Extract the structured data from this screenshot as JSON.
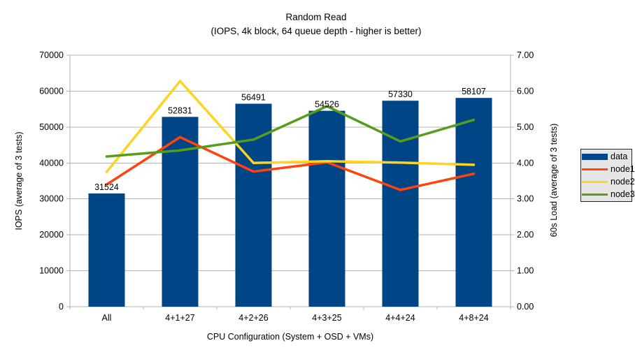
{
  "title": {
    "line1": "Random Read",
    "line2": "(IOPS, 4k block, 64 queue depth - higher is better)"
  },
  "chart_data": {
    "type": "bar+line",
    "categories": [
      "All",
      "4+1+27",
      "4+2+26",
      "4+3+25",
      "4+4+24",
      "4+8+24"
    ],
    "bar_series": {
      "name": "data",
      "axis": "left",
      "color": "#004586",
      "values": [
        31524,
        52831,
        56491,
        54526,
        57330,
        58107
      ]
    },
    "line_series": [
      {
        "name": "node1",
        "axis": "right",
        "color": "#ff420e",
        "values": [
          3.4,
          4.72,
          3.76,
          4.02,
          3.25,
          3.7
        ]
      },
      {
        "name": "node2",
        "axis": "right",
        "color": "#ffd320",
        "values": [
          3.75,
          6.28,
          4.0,
          4.05,
          4.01,
          3.95
        ]
      },
      {
        "name": "node3",
        "axis": "right",
        "color": "#579d1c",
        "values": [
          4.18,
          4.35,
          4.65,
          5.58,
          4.6,
          5.2
        ]
      }
    ],
    "left_axis": {
      "title": "IOPS (average of 3 tests)",
      "min": 0,
      "max": 70000,
      "step": 10000,
      "decimals": 0
    },
    "right_axis": {
      "title": "60s Load (average of 3 tests)",
      "min": 0,
      "max": 7,
      "step": 1,
      "decimals": 2
    },
    "xlabel": "CPU Configuration (System + OSD + VMs)",
    "grid": true,
    "legend": {
      "position": "right",
      "items": [
        {
          "label": "data",
          "color": "#004586",
          "type": "bar"
        },
        {
          "label": "node1",
          "color": "#ff420e",
          "type": "line"
        },
        {
          "label": "node2",
          "color": "#ffd320",
          "type": "line"
        },
        {
          "label": "node3",
          "color": "#579d1c",
          "type": "line"
        }
      ]
    }
  },
  "colors": {
    "background": "#ffffff",
    "grid": "#b3b3b3",
    "text": "#000000",
    "legend_bg": "#e6e6e6",
    "legend_border": "#262626"
  }
}
